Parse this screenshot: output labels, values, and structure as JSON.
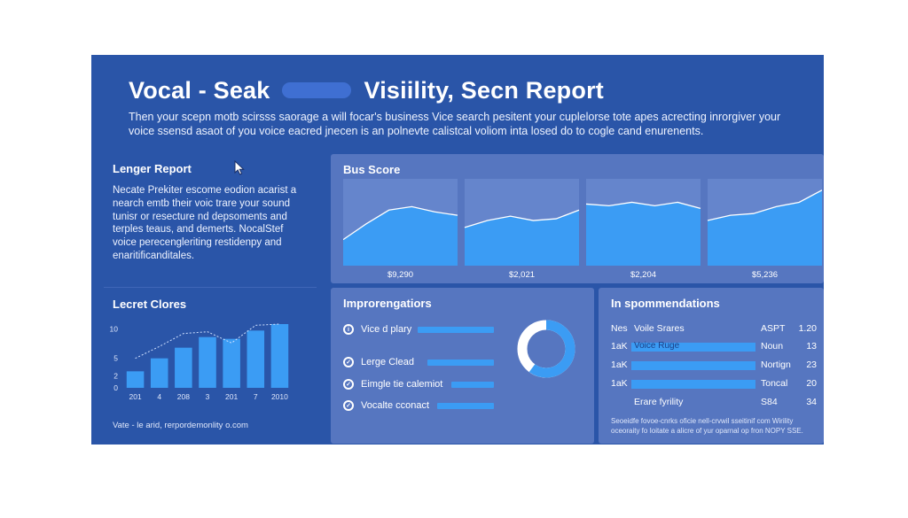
{
  "header": {
    "title_left": "Vocal - Seak",
    "title_right": "Visiility, Secn Report",
    "subtitle": "Then your scepn motb scirsss saorage a will focar's business Vice search pesitent your cuplelorse tote apes acrecting inrorgiver your voice ssensd asaot of you voice eacred jnecen is an polnevte calistcal voliom inta losed do to cogle cand enurenents."
  },
  "left": {
    "heading": "Lenger Report",
    "body": "Necate Prekiter escome eodion acarist a nearch emtb their voic trare your sound tunisr or resecture nd depsoments and terples teaus, and demerts. NocalStef voice perecengleriting restidenpy and enaritificanditales.",
    "chart_heading": "Lecret Clores",
    "footnote": "Vate - le arid, rerpordemonlity o.com"
  },
  "chart_data": [
    {
      "type": "bar",
      "categories": [
        "201",
        "4",
        "208",
        "3",
        "201",
        "7",
        "2010"
      ],
      "values": [
        2.8,
        5.0,
        6.8,
        8.6,
        8.3,
        9.7,
        10.8
      ],
      "overlay_line": [
        5.0,
        7.0,
        9.2,
        9.5,
        7.6,
        10.6,
        10.8
      ],
      "yticks": [
        0,
        2,
        5,
        10
      ],
      "ylim": [
        0,
        12
      ],
      "colors": {
        "bar": "#3b9cf4",
        "line": "#cfe0ff"
      }
    },
    {
      "type": "area",
      "title": "Bus Score",
      "series": [
        {
          "label": "$9,290",
          "values": [
            30,
            48,
            64,
            68,
            62,
            58
          ]
        },
        {
          "label": "$2,021",
          "values": [
            44,
            52,
            57,
            52,
            54,
            64
          ]
        },
        {
          "label": "$2,204",
          "values": [
            71,
            69,
            73,
            69,
            73,
            66
          ]
        },
        {
          "label": "$5,236",
          "values": [
            52,
            58,
            60,
            68,
            73,
            87
          ]
        }
      ],
      "ylim": [
        0,
        100
      ],
      "colors": {
        "fill": "#3b9cf4",
        "line": "#ffffff",
        "panel": "#6585cc"
      }
    }
  ],
  "improvements": {
    "heading": "Improrengatiors",
    "items": [
      {
        "label": "Vice d plary",
        "icon": "info-icon"
      },
      {
        "label": "Lerge Clead",
        "icon": "check-icon"
      },
      {
        "label": "Eimgle tie calemiot",
        "icon": "check-icon"
      },
      {
        "label": "Vocalte cconact",
        "icon": "check-icon"
      }
    ],
    "donut_fraction": 0.6
  },
  "recommendations": {
    "heading": "In spommendations",
    "rows": [
      {
        "c1": "Nes",
        "c2": "Voile Srares",
        "c3": "ASPT",
        "c4": "1.20",
        "bar": false
      },
      {
        "c1": "1aK",
        "c2": "Voice Ruge",
        "c3": "Noun",
        "c4": "13",
        "bar": true
      },
      {
        "c1": "1aK",
        "c2": "",
        "c3": "Nortign",
        "c4": "23",
        "bar": true
      },
      {
        "c1": "1aK",
        "c2": "",
        "c3": "Toncal",
        "c4": "20",
        "bar": true
      },
      {
        "c1": "",
        "c2": "Erare fyrility",
        "c3": "S84",
        "c4": "34",
        "bar": false
      }
    ],
    "note": "Seoeidfe fovoe-cnrks oficie nell-crvwil sseitinif com Wirility oceoraity fo Ioitate a alicre of yur oparnal op fron NOPY SSE."
  }
}
